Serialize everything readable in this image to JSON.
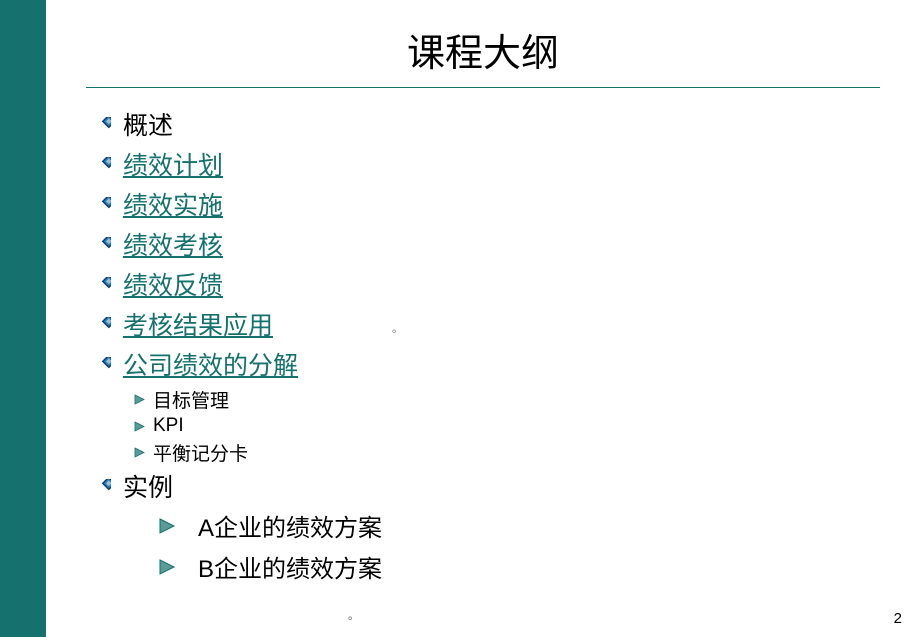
{
  "colors": {
    "left_bar": "#14716d",
    "hr_line": "#14716d",
    "link": "#14716d",
    "diamond_outer": "#0d3f6b",
    "diamond_inner": "#2a7fbf",
    "triangle": "#14716d",
    "triangle_fill": "#5a9b97"
  },
  "title": "课程大纲",
  "items": [
    {
      "level": 1,
      "type": "text",
      "label": "概述"
    },
    {
      "level": 1,
      "type": "link",
      "label": "绩效计划"
    },
    {
      "level": 1,
      "type": "link",
      "label": "绩效实施"
    },
    {
      "level": 1,
      "type": "link",
      "label": "绩效考核"
    },
    {
      "level": 1,
      "type": "link",
      "label": "绩效反馈"
    },
    {
      "level": 1,
      "type": "link",
      "label": "考核结果应用"
    },
    {
      "level": 1,
      "type": "link",
      "label": "公司绩效的分解"
    },
    {
      "level": 2,
      "type": "small",
      "label": "目标管理"
    },
    {
      "level": 2,
      "type": "small",
      "label": "KPI"
    },
    {
      "level": 2,
      "type": "small",
      "label": "平衡记分卡"
    },
    {
      "level": 1,
      "type": "text",
      "label": "实例"
    },
    {
      "level": 2,
      "type": "big",
      "label": "A企业的绩效方案"
    },
    {
      "level": 2,
      "type": "big",
      "label": "B企业的绩效方案"
    }
  ],
  "page_number": "2",
  "dot_bottom": "。",
  "dot_mid": "。"
}
